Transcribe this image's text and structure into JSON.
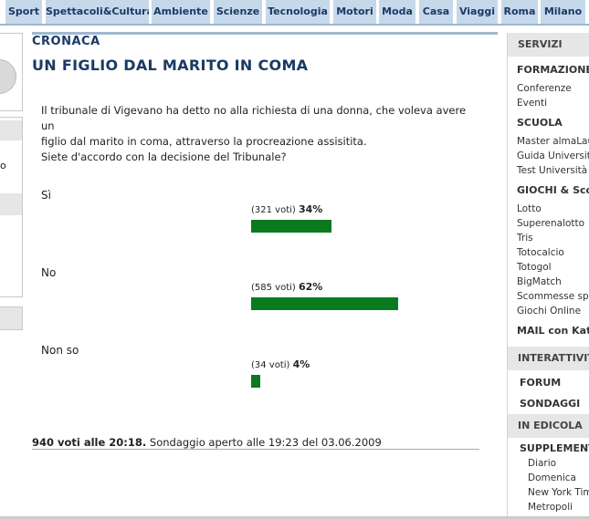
{
  "nav": {
    "items": [
      "Sport",
      "Spettacoli&Cultura",
      "Ambiente",
      "Scienze",
      "Tecnologia",
      "Motori",
      "Moda",
      "Casa",
      "Viaggi",
      "Roma",
      "Milano"
    ]
  },
  "left": {
    "text_o": "o"
  },
  "article": {
    "section": "CRONACA",
    "title": "UN FIGLIO DAL MARITO IN COMA",
    "question_line1": "Il tribunale di Vigevano ha detto no alla richiesta di una donna, che voleva avere un",
    "question_line2": "figlio dal marito in coma, attraverso la procreazione assisitita.",
    "question_line3": "Siete d'accordo con la decisione del Tribunale?"
  },
  "poll": {
    "options": [
      {
        "label": "Sì",
        "votes_text": "(321 voti)",
        "percent_text": "34%",
        "percent": 34
      },
      {
        "label": "No",
        "votes_text": "(585 voti)",
        "percent_text": "62%",
        "percent": 62
      },
      {
        "label": "Non so",
        "votes_text": "(34 voti)",
        "percent_text": "4%",
        "percent": 4
      }
    ],
    "summary_bold": "940 voti alle 20:18.",
    "summary_rest": " Sondaggio aperto alle 19:23 del 03.06.2009",
    "bar_color": "#0a7a21"
  },
  "sidebar": {
    "servizi": "SERVIZI",
    "formazione": "FORMAZIONE",
    "formazione_links": [
      "Conferenze",
      "Eventi"
    ],
    "scuola": "SCUOLA",
    "scuola_links": [
      "Master almaLaur",
      "Guida Università",
      "Test Università"
    ],
    "giochi": "GIOCHI & Scom",
    "giochi_links": [
      "Lotto",
      "Superenalotto",
      "Tris",
      "Totocalcio",
      "Totogol",
      "BigMatch",
      "Scommesse spo",
      "Giochi Online"
    ],
    "mail": "MAIL con Katar",
    "interattivita": "INTERATTIVITA",
    "forum": "FORUM",
    "sondaggi": "SONDAGGI",
    "edicola": "IN EDICOLA",
    "supplementi": "SUPPLEMENTI",
    "supplementi_links": [
      "Diario",
      "Domenica",
      "New York Tim",
      "Metropoli"
    ]
  }
}
